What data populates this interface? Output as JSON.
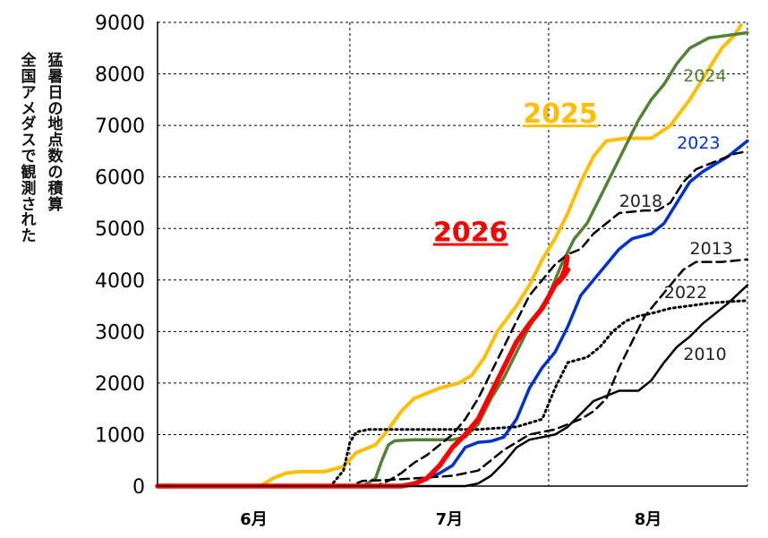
{
  "chart_data": {
    "type": "line",
    "title": "",
    "ylabel": [
      "全国アメダスで観測された",
      "猛暑日の地点数の積算"
    ],
    "xlabel": "",
    "x_unit": "day of summer",
    "xlim": [
      0,
      92
    ],
    "ylim": [
      0,
      9000
    ],
    "yticks": [
      0,
      1000,
      2000,
      3000,
      4000,
      5000,
      6000,
      7000,
      8000,
      9000
    ],
    "month_labels": [
      "6月",
      "7月",
      "8月"
    ],
    "grid": true,
    "series": [
      {
        "name": "2025",
        "color": "#ffbf00",
        "dash": "solid",
        "width": 4,
        "emphasis": true,
        "label_color": "#ffbf00",
        "points": [
          [
            0,
            0
          ],
          [
            16,
            0
          ],
          [
            18,
            150
          ],
          [
            20,
            250
          ],
          [
            22,
            280
          ],
          [
            26,
            280
          ],
          [
            29,
            380
          ],
          [
            31,
            650
          ],
          [
            34,
            800
          ],
          [
            36,
            1100
          ],
          [
            38,
            1450
          ],
          [
            40,
            1700
          ],
          [
            42,
            1800
          ],
          [
            44,
            1900
          ],
          [
            47,
            2000
          ],
          [
            49,
            2150
          ],
          [
            51,
            2500
          ],
          [
            53,
            3000
          ],
          [
            56,
            3500
          ],
          [
            58,
            3900
          ],
          [
            60,
            4400
          ],
          [
            62,
            4800
          ],
          [
            64,
            5300
          ],
          [
            66,
            5900
          ],
          [
            68,
            6400
          ],
          [
            70,
            6700
          ],
          [
            73,
            6750
          ],
          [
            77,
            6750
          ],
          [
            80,
            7000
          ],
          [
            83,
            7500
          ],
          [
            86,
            8100
          ],
          [
            88,
            8500
          ],
          [
            90,
            8750
          ],
          [
            91,
            8950
          ]
        ]
      },
      {
        "name": "2024",
        "color": "#548235",
        "dash": "solid",
        "width": 3.5,
        "emphasis": false,
        "label_color": "#548235",
        "points": [
          [
            0,
            0
          ],
          [
            32,
            0
          ],
          [
            34,
            150
          ],
          [
            35,
            500
          ],
          [
            36,
            800
          ],
          [
            37,
            880
          ],
          [
            40,
            900
          ],
          [
            46,
            900
          ],
          [
            48,
            950
          ],
          [
            50,
            1200
          ],
          [
            52,
            1700
          ],
          [
            54,
            2100
          ],
          [
            56,
            2600
          ],
          [
            58,
            3100
          ],
          [
            61,
            3700
          ],
          [
            63,
            4300
          ],
          [
            65,
            4800
          ],
          [
            67,
            5100
          ],
          [
            69,
            5600
          ],
          [
            71,
            6100
          ],
          [
            73,
            6600
          ],
          [
            75,
            7100
          ],
          [
            77,
            7500
          ],
          [
            79,
            7800
          ],
          [
            81,
            8200
          ],
          [
            83,
            8500
          ],
          [
            86,
            8700
          ],
          [
            92,
            8800
          ]
        ]
      },
      {
        "name": "2023",
        "color": "#0033cc",
        "dash": "solid",
        "width": 3.5,
        "emphasis": false,
        "label_color": "#0033cc",
        "points": [
          [
            0,
            0
          ],
          [
            38,
            0
          ],
          [
            40,
            60
          ],
          [
            42,
            150
          ],
          [
            44,
            250
          ],
          [
            46,
            400
          ],
          [
            48,
            750
          ],
          [
            50,
            850
          ],
          [
            52,
            870
          ],
          [
            54,
            950
          ],
          [
            56,
            1300
          ],
          [
            58,
            1900
          ],
          [
            60,
            2300
          ],
          [
            62,
            2600
          ],
          [
            64,
            3100
          ],
          [
            66,
            3700
          ],
          [
            68,
            4000
          ],
          [
            70,
            4300
          ],
          [
            72,
            4600
          ],
          [
            74,
            4800
          ],
          [
            77,
            4900
          ],
          [
            79,
            5100
          ],
          [
            81,
            5500
          ],
          [
            83,
            5900
          ],
          [
            85,
            6100
          ],
          [
            87,
            6250
          ],
          [
            89,
            6400
          ],
          [
            92,
            6700
          ]
        ]
      },
      {
        "name": "2018",
        "color": "#000000",
        "dash": "10,6",
        "width": 2.5,
        "emphasis": false,
        "label_color": "#222222",
        "points": [
          [
            0,
            0
          ],
          [
            34,
            0
          ],
          [
            36,
            100
          ],
          [
            38,
            250
          ],
          [
            40,
            450
          ],
          [
            42,
            600
          ],
          [
            44,
            800
          ],
          [
            46,
            1000
          ],
          [
            48,
            1300
          ],
          [
            50,
            1700
          ],
          [
            52,
            2200
          ],
          [
            54,
            2700
          ],
          [
            56,
            3200
          ],
          [
            58,
            3700
          ],
          [
            60,
            4000
          ],
          [
            62,
            4300
          ],
          [
            64,
            4500
          ],
          [
            66,
            4600
          ],
          [
            68,
            4900
          ],
          [
            70,
            5100
          ],
          [
            72,
            5300
          ],
          [
            76,
            5350
          ],
          [
            78,
            5350
          ],
          [
            80,
            5500
          ],
          [
            82,
            5900
          ],
          [
            84,
            6150
          ],
          [
            86,
            6250
          ],
          [
            88,
            6350
          ],
          [
            90,
            6450
          ],
          [
            92,
            6500
          ]
        ]
      },
      {
        "name": "2013",
        "color": "#000000",
        "dash": "10,6",
        "width": 2.5,
        "emphasis": false,
        "label_color": "#222222",
        "points": [
          [
            0,
            0
          ],
          [
            30,
            0
          ],
          [
            32,
            100
          ],
          [
            36,
            120
          ],
          [
            40,
            150
          ],
          [
            46,
            200
          ],
          [
            50,
            300
          ],
          [
            54,
            700
          ],
          [
            58,
            1000
          ],
          [
            62,
            1100
          ],
          [
            64,
            1200
          ],
          [
            66,
            1300
          ],
          [
            68,
            1450
          ],
          [
            70,
            1700
          ],
          [
            72,
            2300
          ],
          [
            74,
            2800
          ],
          [
            76,
            3300
          ],
          [
            78,
            3600
          ],
          [
            80,
            3900
          ],
          [
            82,
            4200
          ],
          [
            84,
            4350
          ],
          [
            88,
            4350
          ],
          [
            92,
            4400
          ]
        ]
      },
      {
        "name": "2022",
        "color": "#000000",
        "dash": "2,4",
        "width": 3,
        "emphasis": false,
        "label_color": "#222222",
        "points": [
          [
            0,
            0
          ],
          [
            27,
            0
          ],
          [
            29,
            300
          ],
          [
            30,
            850
          ],
          [
            31,
            1050
          ],
          [
            33,
            1100
          ],
          [
            40,
            1100
          ],
          [
            46,
            1100
          ],
          [
            50,
            1100
          ],
          [
            56,
            1150
          ],
          [
            60,
            1300
          ],
          [
            62,
            1900
          ],
          [
            64,
            2400
          ],
          [
            67,
            2500
          ],
          [
            69,
            2700
          ],
          [
            71,
            3000
          ],
          [
            73,
            3200
          ],
          [
            75,
            3300
          ],
          [
            77,
            3350
          ],
          [
            80,
            3450
          ],
          [
            83,
            3500
          ],
          [
            86,
            3550
          ],
          [
            89,
            3580
          ],
          [
            92,
            3600
          ]
        ]
      },
      {
        "name": "2010",
        "color": "#000000",
        "dash": "solid",
        "width": 2.5,
        "emphasis": false,
        "label_color": "#222222",
        "points": [
          [
            0,
            0
          ],
          [
            48,
            0
          ],
          [
            50,
            50
          ],
          [
            52,
            200
          ],
          [
            54,
            450
          ],
          [
            56,
            750
          ],
          [
            58,
            900
          ],
          [
            60,
            950
          ],
          [
            62,
            1000
          ],
          [
            64,
            1150
          ],
          [
            66,
            1400
          ],
          [
            68,
            1650
          ],
          [
            70,
            1750
          ],
          [
            72,
            1850
          ],
          [
            75,
            1850
          ],
          [
            77,
            2050
          ],
          [
            79,
            2400
          ],
          [
            81,
            2700
          ],
          [
            83,
            2900
          ],
          [
            85,
            3150
          ],
          [
            87,
            3350
          ],
          [
            89,
            3550
          ],
          [
            92,
            3900
          ]
        ]
      },
      {
        "name": "2026",
        "color": "#ff0000",
        "dash": "solid",
        "width": 5.5,
        "emphasis": true,
        "label_color": "#ff0000",
        "points": [
          [
            0,
            0
          ],
          [
            38,
            0
          ],
          [
            40,
            40
          ],
          [
            42,
            150
          ],
          [
            44,
            400
          ],
          [
            46,
            750
          ],
          [
            48,
            1000
          ],
          [
            50,
            1300
          ],
          [
            52,
            1800
          ],
          [
            54,
            2300
          ],
          [
            56,
            2800
          ],
          [
            58,
            3150
          ],
          [
            60,
            3450
          ],
          [
            62,
            3900
          ],
          [
            64,
            4200
          ],
          [
            63.5,
            4100
          ],
          [
            62.5,
            3950
          ],
          [
            63,
            4050
          ],
          [
            63.5,
            4200
          ],
          [
            63.8,
            4350
          ],
          [
            63.9,
            4450
          ]
        ]
      }
    ],
    "series_labels": [
      {
        "name": "2025",
        "x": 57,
        "y": 7050,
        "size": 30,
        "bold": true,
        "underline": true
      },
      {
        "name": "2026",
        "x": 43,
        "y": 4750,
        "size": 30,
        "bold": true,
        "underline": true
      },
      {
        "name": "2024",
        "x": 82,
        "y": 7850,
        "size": 19,
        "bold": false,
        "underline": false
      },
      {
        "name": "2023",
        "x": 81,
        "y": 6550,
        "size": 19,
        "bold": false,
        "underline": false
      },
      {
        "name": "2018",
        "x": 72,
        "y": 5420,
        "size": 19,
        "bold": false,
        "underline": false
      },
      {
        "name": "2013",
        "x": 83,
        "y": 4500,
        "size": 19,
        "bold": false,
        "underline": false
      },
      {
        "name": "2022",
        "x": 79,
        "y": 3650,
        "size": 19,
        "bold": false,
        "underline": false
      },
      {
        "name": "2010",
        "x": 82,
        "y": 2450,
        "size": 19,
        "bold": false,
        "underline": false
      }
    ]
  }
}
